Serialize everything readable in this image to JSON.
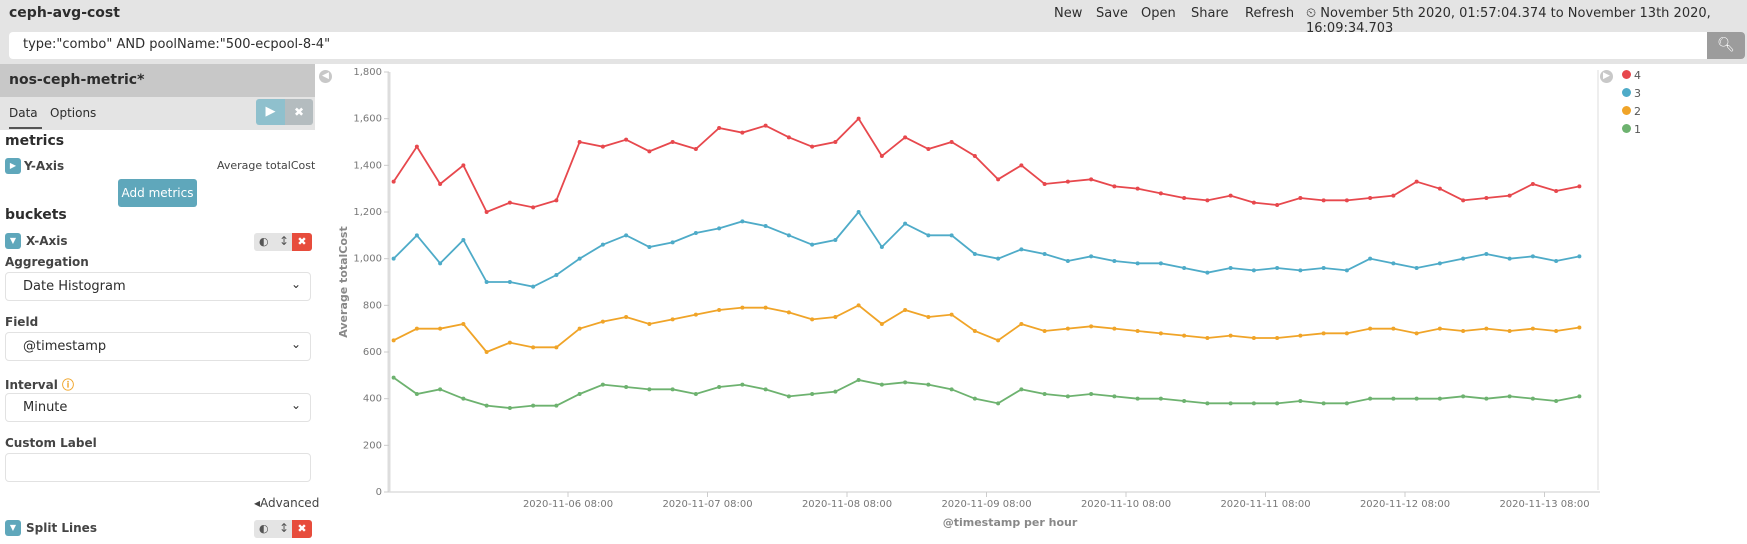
{
  "header": {
    "title": "ceph-avg-cost",
    "menu": [
      "New",
      "Save",
      "Open",
      "Share",
      "Refresh"
    ],
    "time_range": "November 5th 2020, 01:57:04.374 to November 13th 2020, 16:09:34.703"
  },
  "query": {
    "value": "type:\"combo\" AND poolName:\"500-ecpool-8-4\""
  },
  "panel": {
    "title": "nos-ceph-metric*",
    "tabs": [
      "Data",
      "Options"
    ],
    "metrics_heading": "metrics",
    "y_axis_label": "Y-Axis",
    "y_axis_value": "Average totalCost",
    "add_metrics": "Add metrics",
    "buckets_heading": "buckets",
    "x_axis_label": "X-Axis",
    "aggregation_label": "Aggregation",
    "aggregation_value": "Date Histogram",
    "field_label": "Field",
    "field_value": "@timestamp",
    "interval_label": "Interval",
    "interval_value": "Minute",
    "custom_label": "Custom Label",
    "custom_value": "",
    "advanced": "Advanced",
    "split_lines": "Split Lines"
  },
  "chart_data": {
    "type": "line",
    "xlabel": "@timestamp per hour",
    "ylabel": "Average totalCost",
    "ylim": [
      0,
      1800
    ],
    "y_ticks": [
      "0",
      "200",
      "400",
      "600",
      "800",
      "1,000",
      "1,200",
      "1,400",
      "1,600",
      "1,800"
    ],
    "x_ticks": [
      "2020-11-06 08:00",
      "2020-11-07 08:00",
      "2020-11-08 08:00",
      "2020-11-09 08:00",
      "2020-11-10 08:00",
      "2020-11-11 08:00",
      "2020-11-12 08:00",
      "2020-11-13 08:00"
    ],
    "legend_position": "right",
    "grid": false,
    "x": [
      "2020-11-05 02:00",
      "2020-11-05 06:00",
      "2020-11-05 10:00",
      "2020-11-05 14:00",
      "2020-11-05 18:00",
      "2020-11-05 22:00",
      "2020-11-06 02:00",
      "2020-11-06 06:00",
      "2020-11-06 10:00",
      "2020-11-06 14:00",
      "2020-11-06 18:00",
      "2020-11-06 22:00",
      "2020-11-07 02:00",
      "2020-11-07 06:00",
      "2020-11-07 10:00",
      "2020-11-07 14:00",
      "2020-11-07 18:00",
      "2020-11-07 22:00",
      "2020-11-08 02:00",
      "2020-11-08 06:00",
      "2020-11-08 10:00",
      "2020-11-08 14:00",
      "2020-11-08 18:00",
      "2020-11-08 22:00",
      "2020-11-09 02:00",
      "2020-11-09 06:00",
      "2020-11-09 10:00",
      "2020-11-09 14:00",
      "2020-11-09 18:00",
      "2020-11-09 22:00",
      "2020-11-10 02:00",
      "2020-11-10 06:00",
      "2020-11-10 10:00",
      "2020-11-10 14:00",
      "2020-11-10 18:00",
      "2020-11-10 22:00",
      "2020-11-11 02:00",
      "2020-11-11 06:00",
      "2020-11-11 10:00",
      "2020-11-11 14:00",
      "2020-11-11 18:00",
      "2020-11-11 22:00",
      "2020-11-12 02:00",
      "2020-11-12 06:00",
      "2020-11-12 10:00",
      "2020-11-12 14:00",
      "2020-11-12 18:00",
      "2020-11-12 22:00",
      "2020-11-13 02:00",
      "2020-11-13 06:00",
      "2020-11-13 10:00",
      "2020-11-13 14:00"
    ],
    "series": [
      {
        "name": "4",
        "color": "#e7484d",
        "values": [
          1330,
          1480,
          1320,
          1400,
          1200,
          1240,
          1220,
          1250,
          1500,
          1480,
          1510,
          1460,
          1500,
          1470,
          1560,
          1540,
          1570,
          1520,
          1480,
          1500,
          1600,
          1440,
          1520,
          1470,
          1500,
          1440,
          1340,
          1400,
          1320,
          1330,
          1340,
          1310,
          1300,
          1280,
          1260,
          1250,
          1270,
          1240,
          1230,
          1260,
          1250,
          1250,
          1260,
          1270,
          1330,
          1300,
          1250,
          1260,
          1270,
          1320,
          1290,
          1310
        ]
      },
      {
        "name": "3",
        "color": "#4eabc8",
        "values": [
          1000,
          1100,
          980,
          1080,
          900,
          900,
          880,
          930,
          1000,
          1060,
          1100,
          1050,
          1070,
          1110,
          1130,
          1160,
          1140,
          1100,
          1060,
          1080,
          1200,
          1050,
          1150,
          1100,
          1100,
          1020,
          1000,
          1040,
          1020,
          990,
          1010,
          990,
          980,
          980,
          960,
          940,
          960,
          950,
          960,
          950,
          960,
          950,
          1000,
          980,
          960,
          980,
          1000,
          1020,
          1000,
          1010,
          990,
          1010
        ]
      },
      {
        "name": "2",
        "color": "#f0a428",
        "values": [
          650,
          700,
          700,
          720,
          600,
          640,
          620,
          620,
          700,
          730,
          750,
          720,
          740,
          760,
          780,
          790,
          790,
          770,
          740,
          750,
          800,
          720,
          780,
          750,
          760,
          690,
          650,
          720,
          690,
          700,
          710,
          700,
          690,
          680,
          670,
          660,
          670,
          660,
          660,
          670,
          680,
          680,
          700,
          700,
          680,
          700,
          690,
          700,
          690,
          700,
          690,
          705
        ]
      },
      {
        "name": "1",
        "color": "#6db26f",
        "values": [
          490,
          420,
          440,
          400,
          370,
          360,
          370,
          370,
          420,
          460,
          450,
          440,
          440,
          420,
          450,
          460,
          440,
          410,
          420,
          430,
          480,
          460,
          470,
          460,
          440,
          400,
          380,
          440,
          420,
          410,
          420,
          410,
          400,
          400,
          390,
          380,
          380,
          380,
          380,
          390,
          380,
          380,
          400,
          400,
          400,
          400,
          410,
          400,
          410,
          400,
          390,
          410
        ]
      }
    ]
  }
}
